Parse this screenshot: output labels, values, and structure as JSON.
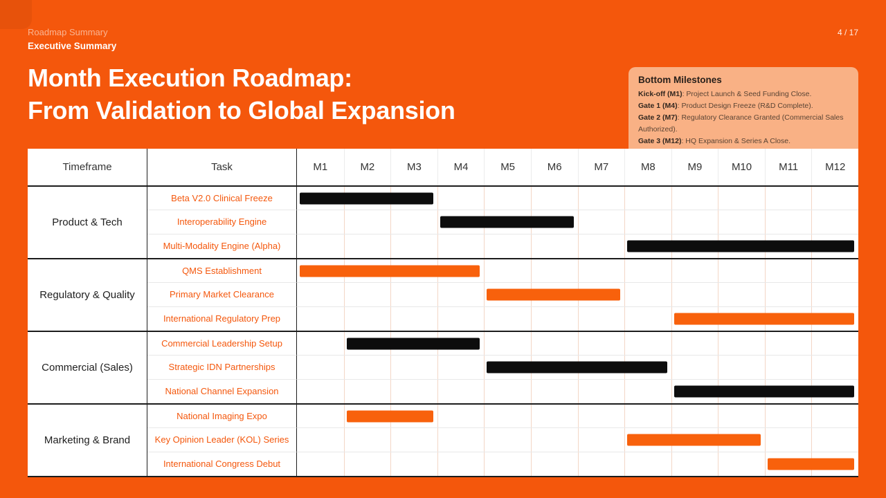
{
  "slide": {
    "eyebrow": "Roadmap Summary",
    "subtitle": "Executive Summary",
    "page_number": "4 / 17",
    "title_line1": "Month Execution Roadmap:",
    "title_line2": "From Validation to Global Expansion"
  },
  "milestones": {
    "title": "Bottom Milestones",
    "items": [
      {
        "label": "Kick-off (M1)",
        "text": "Project Launch & Seed Funding Close."
      },
      {
        "label": "Gate 1 (M4)",
        "text": "Product Design Freeze (R&D Complete)."
      },
      {
        "label": "Gate 2 (M7)",
        "text": "Regulatory Clearance Granted (Commercial Sales Authorized)."
      },
      {
        "label": "Gate 3 (M12)",
        "text": "HQ Expansion & Series A Close."
      }
    ]
  },
  "table": {
    "header_timeframe": "Timeframe",
    "header_task": "Task"
  },
  "chart_data": {
    "type": "bar",
    "variant": "gantt",
    "title": "Month Execution Roadmap: From Validation to Global Expansion",
    "x_axis_months": [
      "M1",
      "M2",
      "M3",
      "M4",
      "M5",
      "M6",
      "M7",
      "M8",
      "M9",
      "M10",
      "M11",
      "M12"
    ],
    "x_range": [
      1,
      12
    ],
    "grid": true,
    "groups": [
      {
        "timeframe": "Product & Tech",
        "tasks": [
          {
            "task": "Beta V2.0 Clinical Freeze",
            "start_month": 1,
            "end_month": 3,
            "color": "black"
          },
          {
            "task": "Interoperability Engine",
            "start_month": 4,
            "end_month": 6,
            "color": "black"
          },
          {
            "task": "Multi-Modality Engine (Alpha)",
            "start_month": 8,
            "end_month": 12,
            "color": "black"
          }
        ]
      },
      {
        "timeframe": "Regulatory & Quality",
        "tasks": [
          {
            "task": "QMS Establishment",
            "start_month": 1,
            "end_month": 4,
            "color": "orange"
          },
          {
            "task": "Primary Market Clearance",
            "start_month": 5,
            "end_month": 7,
            "color": "orange"
          },
          {
            "task": "International Regulatory Prep",
            "start_month": 9,
            "end_month": 12,
            "color": "orange"
          }
        ]
      },
      {
        "timeframe": "Commercial (Sales)",
        "tasks": [
          {
            "task": "Commercial Leadership Setup",
            "start_month": 2,
            "end_month": 4,
            "color": "black"
          },
          {
            "task": "Strategic IDN Partnerships",
            "start_month": 5,
            "end_month": 8,
            "color": "black"
          },
          {
            "task": "National Channel Expansion",
            "start_month": 9,
            "end_month": 12,
            "color": "black"
          }
        ]
      },
      {
        "timeframe": "Marketing & Brand",
        "tasks": [
          {
            "task": "National Imaging Expo",
            "start_month": 2,
            "end_month": 3,
            "color": "orange"
          },
          {
            "task": "Key Opinion Leader (KOL) Series",
            "start_month": 8,
            "end_month": 10,
            "color": "orange"
          },
          {
            "task": "International Congress Debut",
            "start_month": 11,
            "end_month": 12,
            "color": "orange"
          }
        ]
      }
    ]
  },
  "colors": {
    "background": "#F4570C",
    "bar_black": "#0D0D0D",
    "bar_orange": "#F8610C",
    "milestone_panel": "#F9B185",
    "task_label_text": "#F4570C",
    "table_background": "#FFFFFF"
  }
}
